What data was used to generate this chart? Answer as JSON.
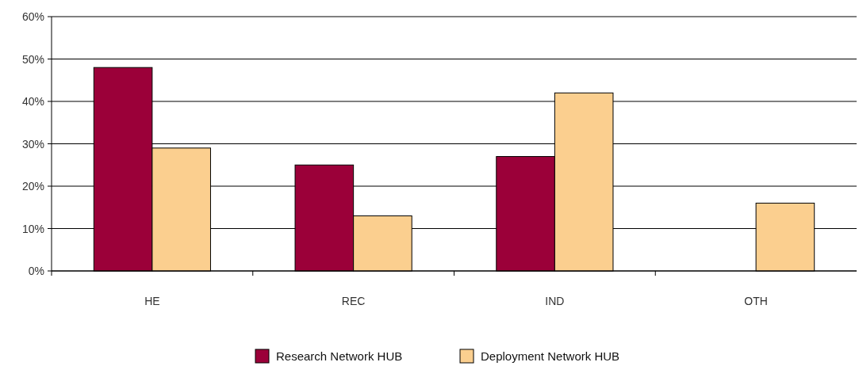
{
  "chart_data": {
    "type": "bar",
    "categories": [
      "HE",
      "REC",
      "IND",
      "OTH"
    ],
    "series": [
      {
        "name": "Research Network HUB",
        "color": "#9b0039",
        "values": [
          48,
          25,
          27,
          0
        ]
      },
      {
        "name": "Deployment Network HUB",
        "color": "#fbcf8f",
        "values": [
          29,
          13,
          42,
          16
        ]
      }
    ],
    "ylim": [
      0,
      60
    ],
    "yticks": [
      {
        "value": 0,
        "label": "0%"
      },
      {
        "value": 10,
        "label": "10%"
      },
      {
        "value": 20,
        "label": "20%"
      },
      {
        "value": 30,
        "label": "30%"
      },
      {
        "value": 40,
        "label": "40%"
      },
      {
        "value": 50,
        "label": "50%"
      },
      {
        "value": 60,
        "label": "60%"
      }
    ],
    "grid": "y",
    "legend": "bottom"
  }
}
